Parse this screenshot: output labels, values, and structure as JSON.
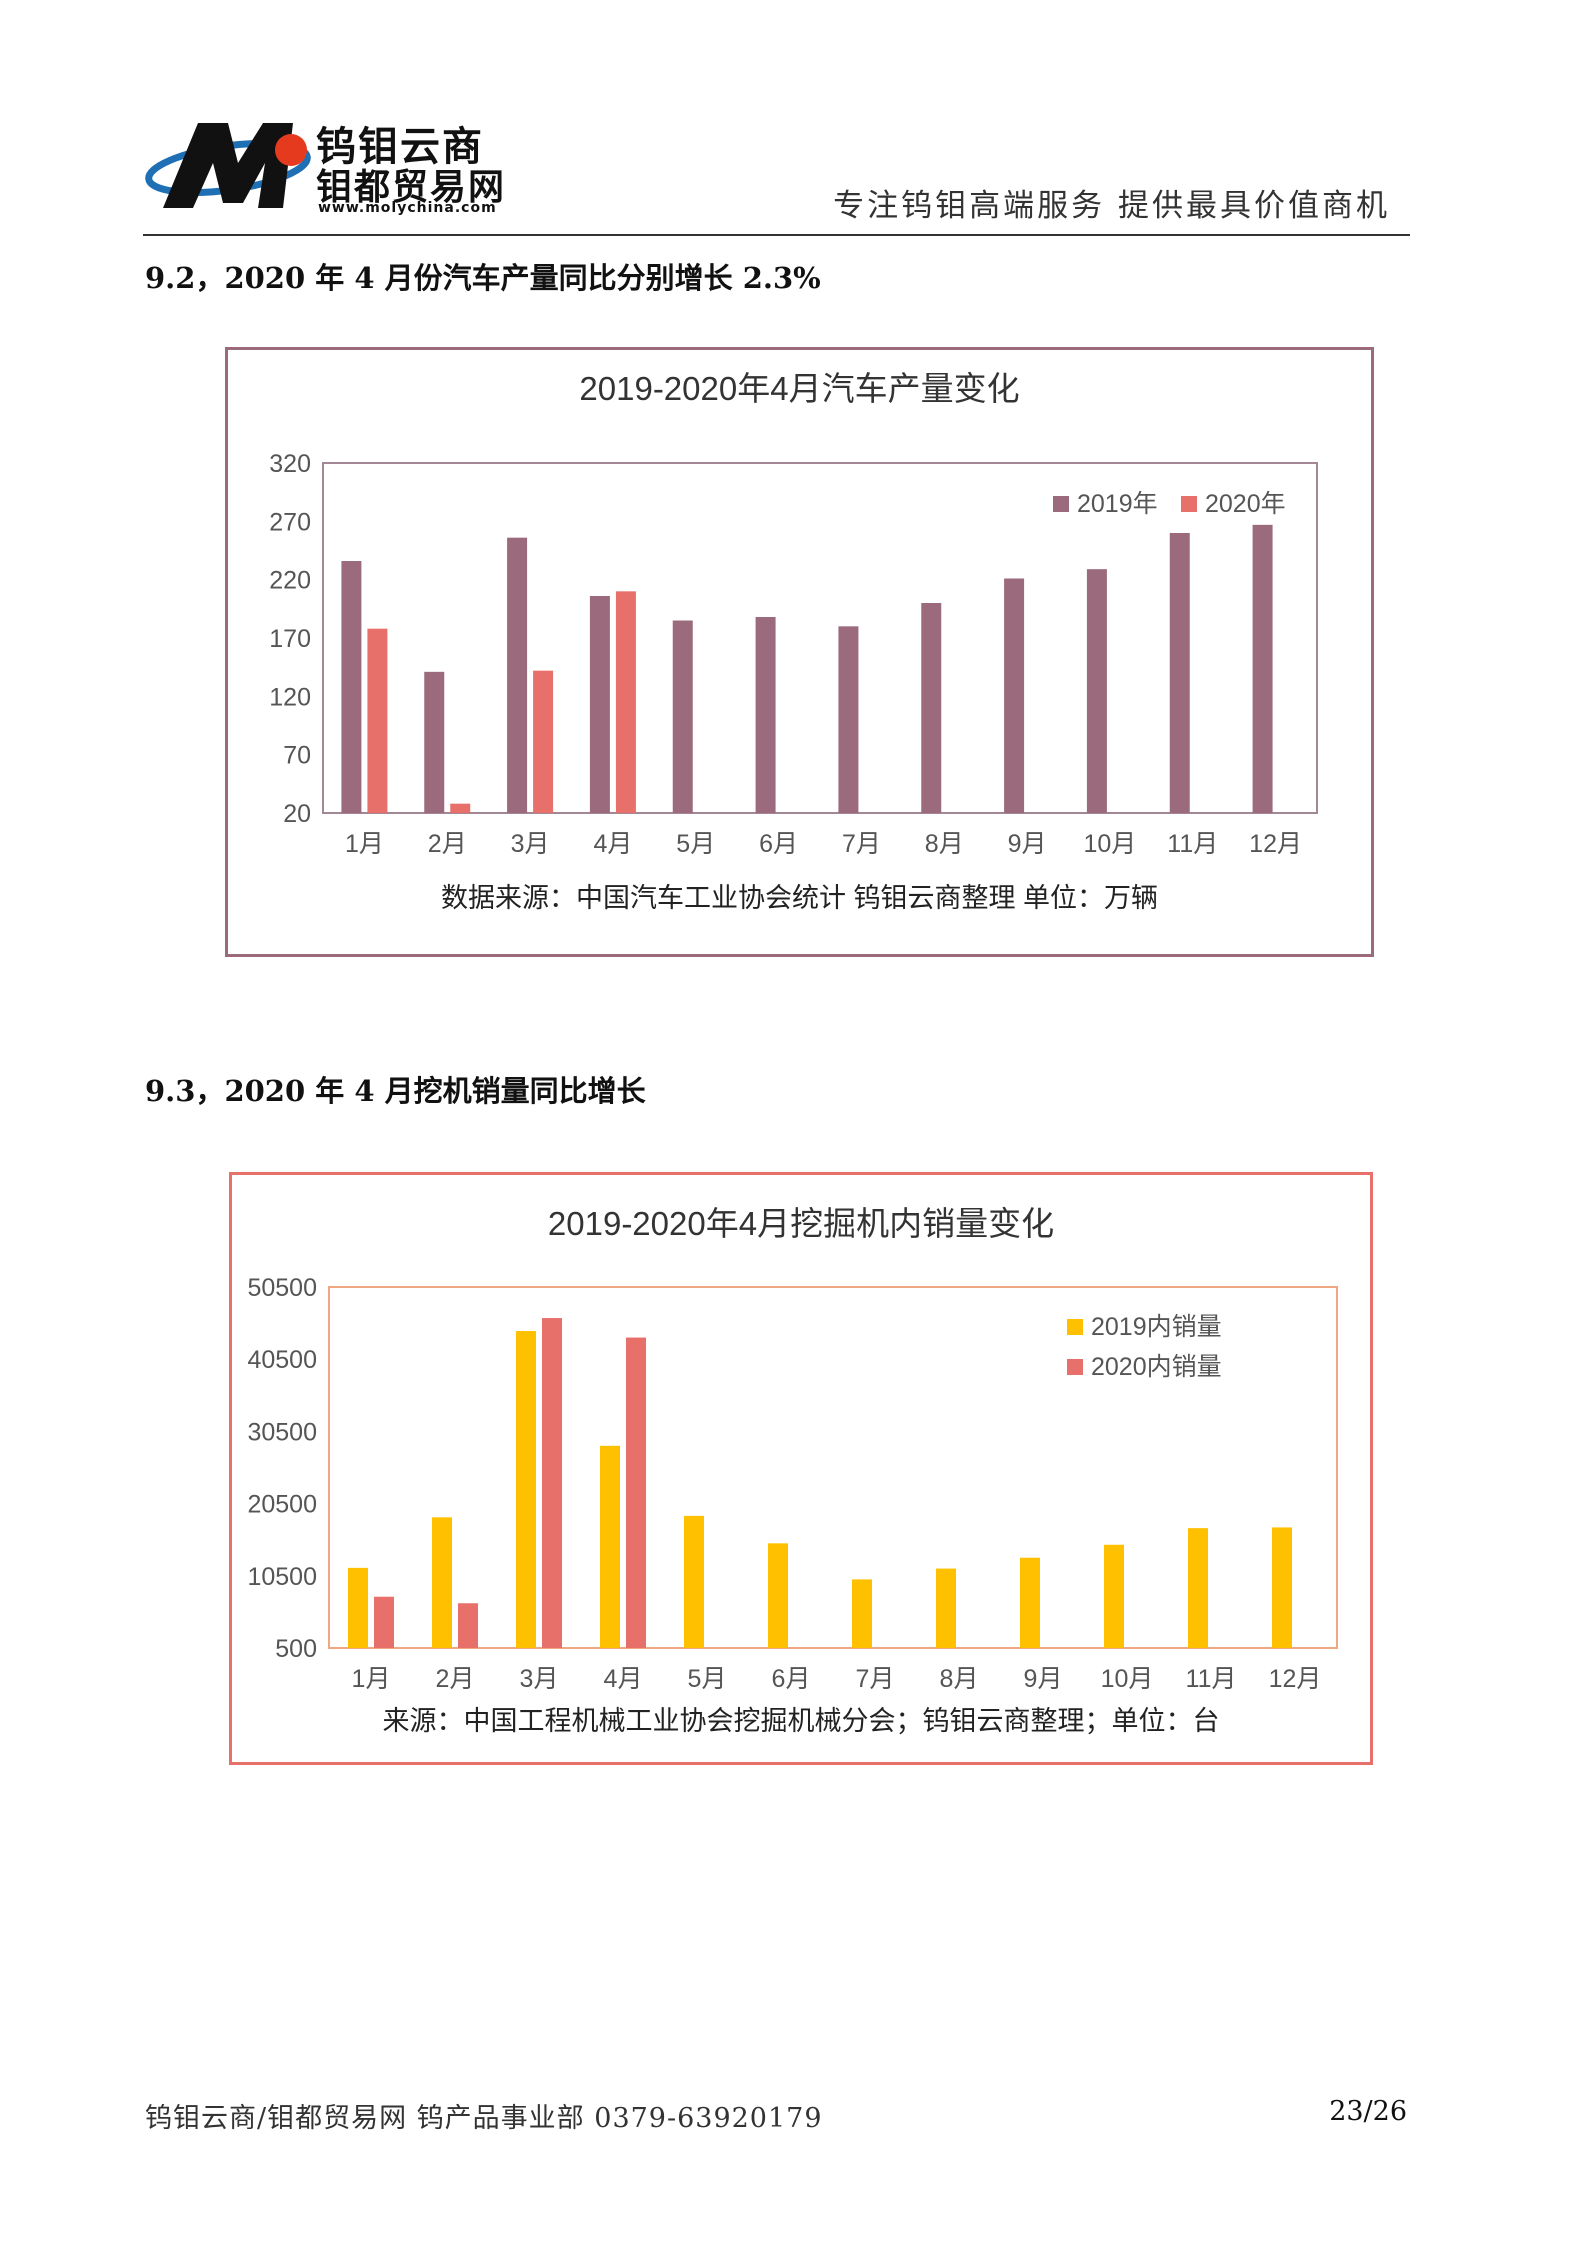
{
  "header": {
    "brand_name": "钨钼云商",
    "brand_sub": "钼都贸易网",
    "brand_url": "www.molychina.com",
    "slogan": "专注钨钼高端服务  提供最具价值商机",
    "logo_icon": "m-globe-logo-icon"
  },
  "sections": [
    {
      "title": "9.2，2020 年 4 月份汽车产量同比分别增长 2.3%"
    },
    {
      "title": "9.3，2020 年 4 月挖机销量同比增长"
    }
  ],
  "chart_data": [
    {
      "type": "bar",
      "title": "2019-2020年4月汽车产量变化",
      "categories": [
        "1月",
        "2月",
        "3月",
        "4月",
        "5月",
        "6月",
        "7月",
        "8月",
        "9月",
        "10月",
        "11月",
        "12月"
      ],
      "series": [
        {
          "name": "2019年",
          "color": "#9b6b7d",
          "values": [
            236,
            141,
            256,
            206,
            185,
            188,
            180,
            200,
            221,
            229,
            260,
            267
          ]
        },
        {
          "name": "2020年",
          "color": "#e8706b",
          "values": [
            178,
            28,
            142,
            210,
            null,
            null,
            null,
            null,
            null,
            null,
            null,
            null
          ]
        }
      ],
      "yticks": [
        20,
        70,
        120,
        170,
        220,
        270,
        320
      ],
      "ylim": [
        20,
        320
      ],
      "legend": "top-right",
      "grid": false,
      "source_note": "数据来源：中国汽车工业协会统计   钨钼云商整理 单位：万辆"
    },
    {
      "type": "bar",
      "title": "2019-2020年4月挖掘机内销量变化",
      "categories": [
        "1月",
        "2月",
        "3月",
        "4月",
        "5月",
        "6月",
        "7月",
        "8月",
        "9月",
        "10月",
        "11月",
        "12月"
      ],
      "series": [
        {
          "name": "2019内销量",
          "color": "#ffc000",
          "values": [
            11600,
            18600,
            44400,
            28500,
            18800,
            15000,
            10000,
            11500,
            13000,
            14800,
            17100,
            17200
          ]
        },
        {
          "name": "2020内销量",
          "color": "#e8706b",
          "values": [
            7600,
            6700,
            46200,
            43500,
            null,
            null,
            null,
            null,
            null,
            null,
            null,
            null
          ]
        }
      ],
      "yticks": [
        500,
        10500,
        20500,
        30500,
        40500,
        50500
      ],
      "ylim": [
        500,
        50500
      ],
      "legend": "top-right",
      "grid": false,
      "source_note": "来源：中国工程机械工业协会挖掘机械分会；钨钼云商整理；单位：台"
    }
  ],
  "footer": {
    "left": "钨钼云商/钼都贸易网 钨产品事业部 0379-63920179",
    "page": "23/26"
  }
}
